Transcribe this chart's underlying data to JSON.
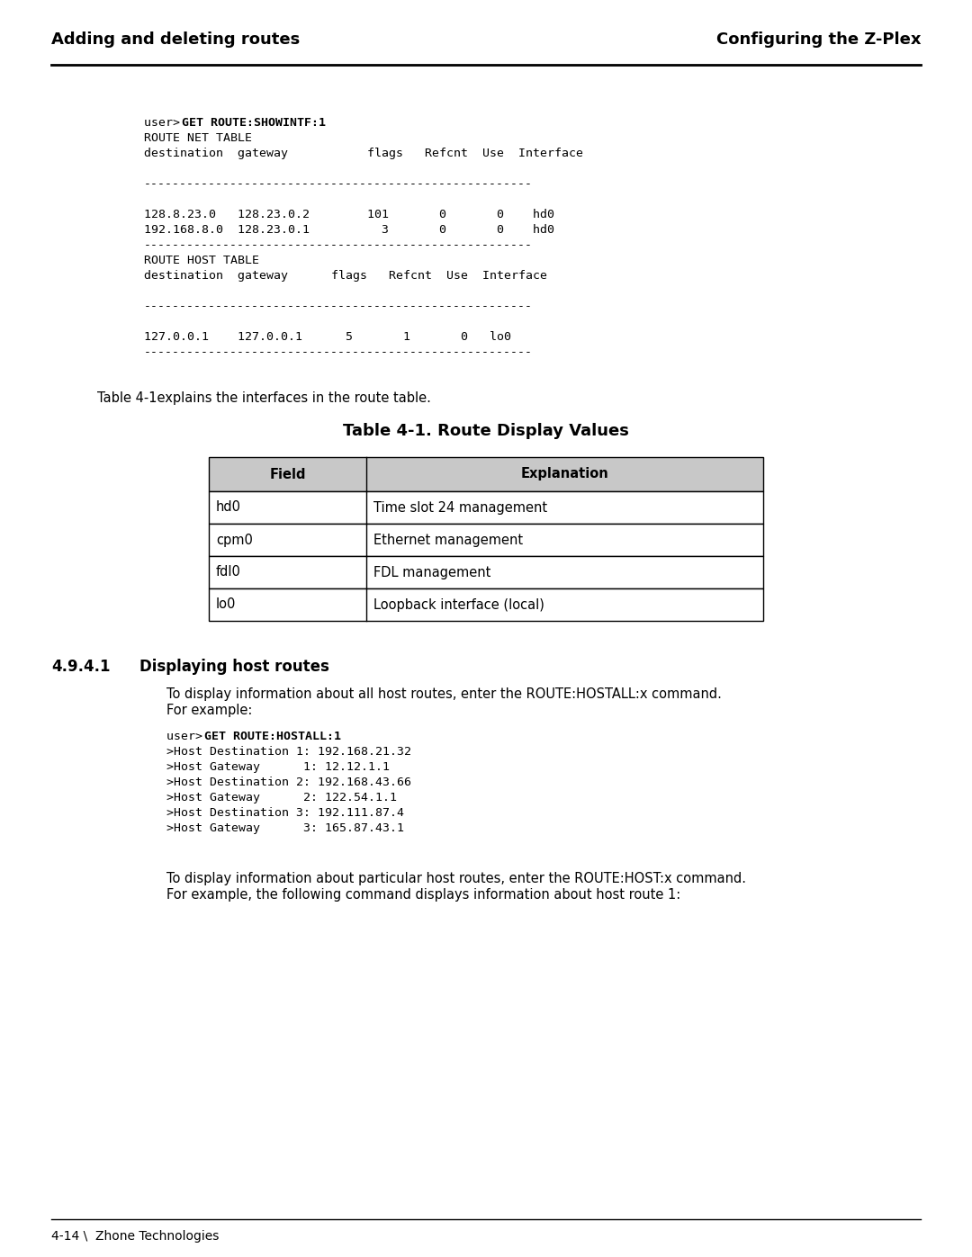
{
  "header_left": "Adding and deleting routes",
  "header_right": "Configuring the Z-Plex",
  "footer_text": "4-14 \\  Zhone Technologies",
  "table_title": "Table 4-1. Route Display Values",
  "table_headers": [
    "Field",
    "Explanation"
  ],
  "table_rows": [
    [
      "hd0",
      "Time slot 24 management"
    ],
    [
      "cpm0",
      "Ethernet management"
    ],
    [
      "fdl0",
      "FDL management"
    ],
    [
      "lo0",
      "Loopback interface (local)"
    ]
  ],
  "section_num": "4.9.4.1",
  "section_title": "Displaying host routes",
  "para1_line1": "To display information about all host routes, enter the ROUTE:HOSTALL:x command.",
  "para1_line2": "For example:",
  "code_block2_bold": "GET ROUTE:HOSTALL:1",
  "code_lines2": [
    ">Host Destination 1: 192.168.21.32",
    ">Host Gateway      1: 12.12.1.1",
    ">Host Destination 2: 192.168.43.66",
    ">Host Gateway      2: 122.54.1.1",
    ">Host Destination 3: 192.111.87.4",
    ">Host Gateway      3: 165.87.43.1"
  ],
  "para2_line1": "To display information about particular host routes, enter the ROUTE:HOST:x command.",
  "para2_line2": "For example, the following command displays information about host route 1:",
  "bg_color": "#ffffff",
  "text_color": "#000000",
  "table_header_bg": "#c8c8c8"
}
